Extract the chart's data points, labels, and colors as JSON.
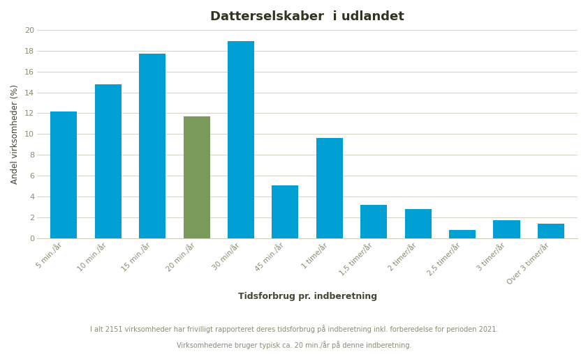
{
  "title": "Datterselskaber  i udlandet",
  "categories": [
    "5 min./år",
    "10 min./år",
    "15 min./år",
    "20 min./år",
    "30 min/år",
    "45 min./år",
    "1 time/år",
    "1,5 timer/år",
    "2 timer/år",
    "2,5 timer/år",
    "3 timer/år",
    "Over 3 timer/år"
  ],
  "values": [
    12.2,
    14.8,
    17.7,
    11.7,
    18.9,
    5.1,
    9.6,
    3.2,
    2.8,
    0.8,
    1.75,
    1.4
  ],
  "bar_colors": [
    "#009FD4",
    "#009FD4",
    "#009FD4",
    "#7A9A5B",
    "#009FD4",
    "#009FD4",
    "#009FD4",
    "#009FD4",
    "#009FD4",
    "#009FD4",
    "#009FD4",
    "#009FD4"
  ],
  "ylabel": "Andel virksomheder (%)",
  "xlabel": "Tidsforbrug pr. indberetning",
  "ylim": [
    0,
    20
  ],
  "yticks": [
    0,
    2,
    4,
    6,
    8,
    10,
    12,
    14,
    16,
    18,
    20
  ],
  "title_fontsize": 13,
  "xlabel_fontsize": 9,
  "ylabel_fontsize": 8.5,
  "tick_label_color": "#8B8B72",
  "axis_label_color": "#444433",
  "title_color": "#333322",
  "grid_color": "#CCCCBB",
  "background_color": "#FFFFFF",
  "subtitle_line1": "I alt 2151 virksomheder har frivilligt rapporteret deres tidsforbrug på indberetning inkl. forberedelse for perioden 2021.",
  "subtitle_line2": "Virksomhederne bruger typisk ca. 20 min./år på denne indberetning.",
  "subtitle_fontsize": 7.0,
  "bar_width": 0.6
}
